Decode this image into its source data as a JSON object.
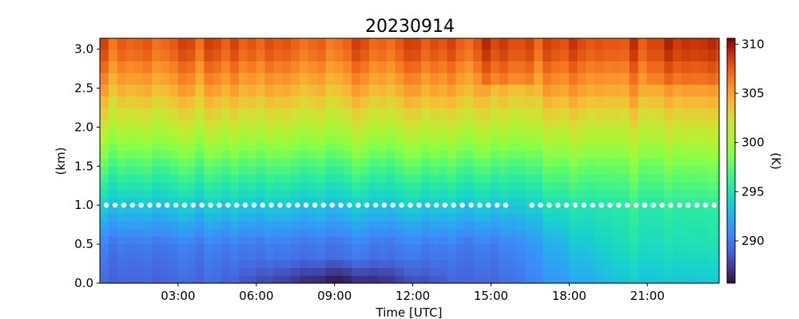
{
  "chart_data": {
    "type": "heatmap",
    "title": "20230914",
    "xlabel": "Time [UTC]",
    "ylabel": "(km)",
    "x_range_hours": [
      0,
      23.75
    ],
    "ylim": [
      0,
      3.14
    ],
    "x_ticks": [
      {
        "hour": 3,
        "label": "03:00"
      },
      {
        "hour": 6,
        "label": "06:00"
      },
      {
        "hour": 9,
        "label": "09:00"
      },
      {
        "hour": 12,
        "label": "12:00"
      },
      {
        "hour": 15,
        "label": "15:00"
      },
      {
        "hour": 18,
        "label": "18:00"
      },
      {
        "hour": 21,
        "label": "21:00"
      }
    ],
    "y_ticks": [
      {
        "value": 0.0,
        "label": "0.0"
      },
      {
        "value": 0.5,
        "label": "0.5"
      },
      {
        "value": 1.0,
        "label": "1.0"
      },
      {
        "value": 1.5,
        "label": "1.5"
      },
      {
        "value": 2.0,
        "label": "2.0"
      },
      {
        "value": 2.5,
        "label": "2.5"
      },
      {
        "value": 3.0,
        "label": "3.0"
      }
    ],
    "colorbar": {
      "label": "(K)",
      "range": [
        285.7,
        310.6
      ],
      "ticks": [
        {
          "value": 290,
          "label": "290"
        },
        {
          "value": 295,
          "label": "295"
        },
        {
          "value": 300,
          "label": "300"
        },
        {
          "value": 305,
          "label": "305"
        },
        {
          "value": 310,
          "label": "310"
        }
      ],
      "colormap": "turbo"
    },
    "time_step_hours": 0.333,
    "heights_km": [
      0.0,
      0.1,
      0.2,
      0.3,
      0.4,
      0.5,
      0.6,
      0.7,
      0.8,
      0.9,
      1.0,
      1.1,
      1.2,
      1.3,
      1.4,
      1.5,
      1.6,
      1.7,
      1.8,
      1.9,
      2.0,
      2.1,
      2.25,
      2.4,
      2.55,
      2.7,
      2.85,
      3.0
    ],
    "temperature_profile_reference": {
      "heights_km": [
        0.0,
        0.5,
        1.0,
        1.5,
        2.0,
        2.5,
        3.0
      ],
      "early_K": [
        289.0,
        290.0,
        293.5,
        297.0,
        301.0,
        304.5,
        307.5
      ],
      "late_K": [
        293.5,
        295.0,
        296.0,
        298.5,
        302.0,
        305.5,
        308.5
      ]
    },
    "cold_surface_minimum": {
      "time_hours": [
        4.5,
        14.0
      ],
      "temperature_K": 286.0
    },
    "marker_line": {
      "height_km": 1.0,
      "color": "#ffffff",
      "gap_hours": [
        15.9,
        16.3
      ]
    }
  }
}
